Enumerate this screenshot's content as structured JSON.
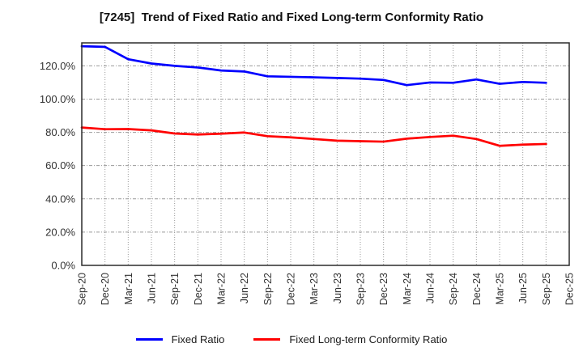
{
  "chart": {
    "title": "[7245]  Trend of Fixed Ratio and Fixed Long-term Conformity Ratio"
  },
  "legend": {
    "items": [
      {
        "label": "Fixed Ratio",
        "color": "#0000ff"
      },
      {
        "label": "Fixed Long-term Conformity Ratio",
        "color": "#ff0000"
      }
    ]
  },
  "chart_data": {
    "type": "line",
    "title": "[7245] Trend of Fixed Ratio and Fixed Long-term Conformity Ratio",
    "categories": [
      "Sep-20",
      "Dec-20",
      "Mar-21",
      "Jun-21",
      "Sep-21",
      "Dec-21",
      "Mar-22",
      "Jun-22",
      "Sep-22",
      "Dec-22",
      "Mar-23",
      "Jun-23",
      "Sep-23",
      "Dec-23",
      "Mar-24",
      "Jun-24",
      "Sep-24",
      "Dec-24",
      "Mar-25",
      "Jun-25",
      "Sep-25",
      "Dec-25"
    ],
    "series": [
      {
        "name": "Fixed Ratio",
        "color": "#0000ff",
        "values": [
          131.8,
          131.4,
          124.0,
          121.4,
          120.0,
          119.0,
          117.2,
          116.6,
          113.7,
          113.4,
          113.1,
          112.7,
          112.3,
          111.5,
          108.4,
          110.0,
          109.8,
          111.8,
          109.2,
          110.3,
          109.8,
          null
        ]
      },
      {
        "name": "Fixed Long-term Conformity Ratio",
        "color": "#ff0000",
        "values": [
          82.9,
          81.9,
          82.0,
          81.2,
          79.3,
          78.7,
          79.2,
          79.9,
          77.7,
          77.0,
          76.0,
          75.0,
          74.7,
          74.4,
          76.2,
          77.2,
          78.0,
          76.0,
          71.9,
          72.6,
          73.0,
          null
        ]
      }
    ],
    "xlabel": "",
    "ylabel": "",
    "ylim": [
      0,
      133.8
    ],
    "yticks": [
      0,
      20,
      40,
      60,
      80,
      100,
      120
    ],
    "ytick_format": "0.0%",
    "grid": true,
    "legend_position": "bottom"
  },
  "style": {
    "grid_color": "#999999",
    "border_color": "#2b2b2b",
    "tick_label_color": "#333333"
  }
}
